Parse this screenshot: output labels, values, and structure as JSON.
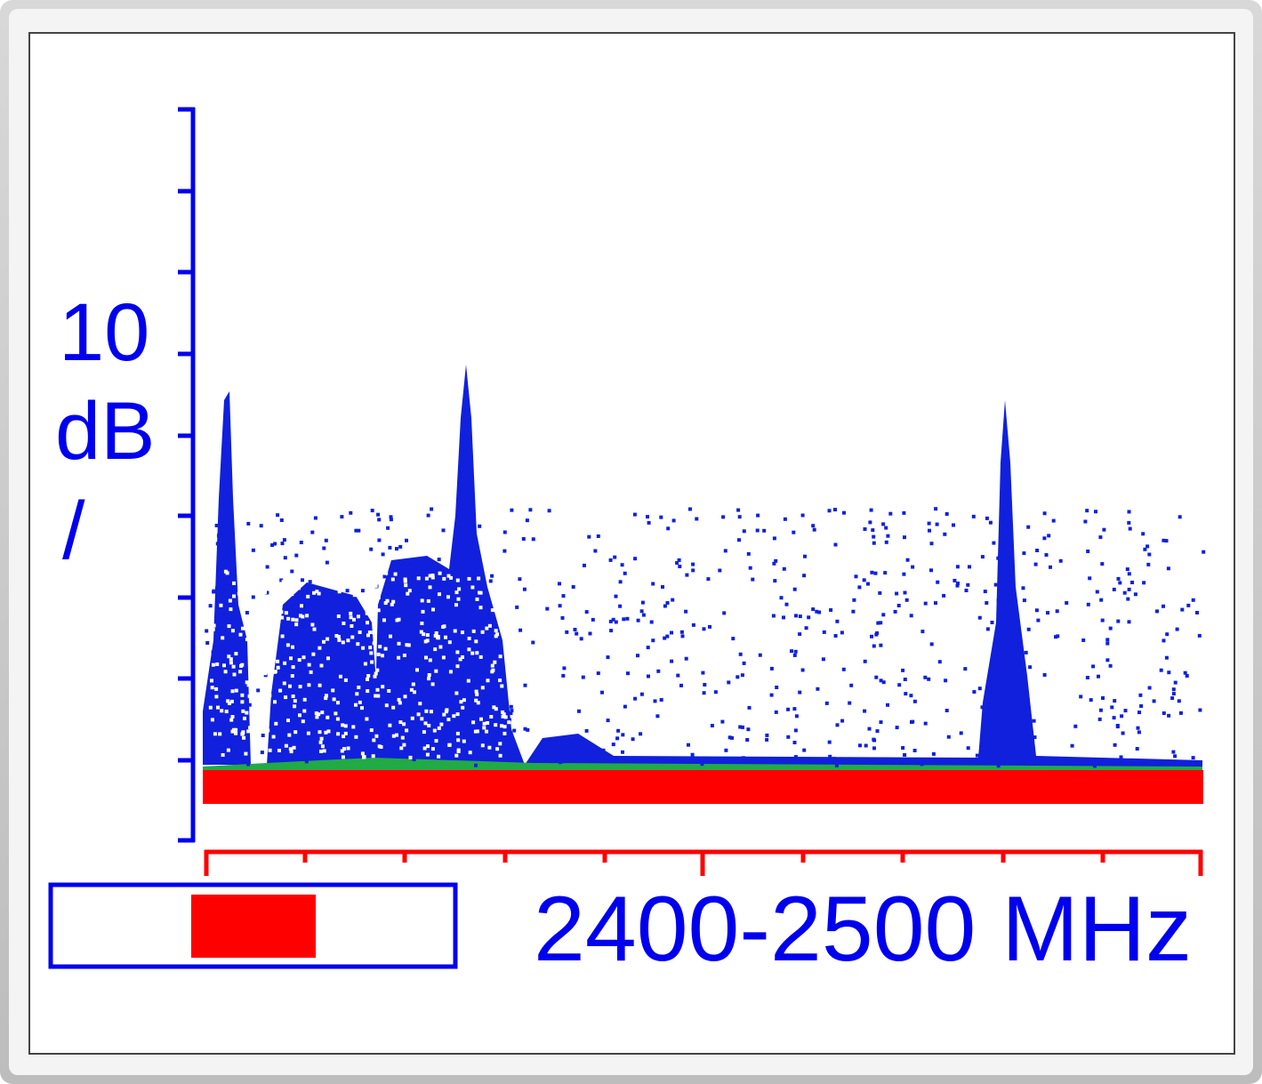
{
  "scale": {
    "value_label": "10",
    "unit_label": "dB",
    "per_label": "/"
  },
  "band": {
    "label": "2400-2500 MHz"
  }
}
